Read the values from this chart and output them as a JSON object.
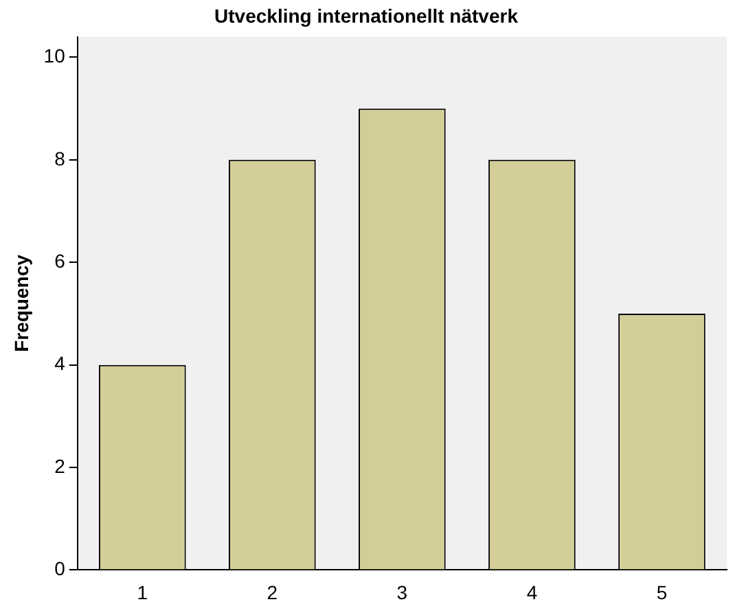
{
  "chart_data": {
    "type": "bar",
    "title": "Utveckling internationellt nätverk",
    "ylabel": "Frequency",
    "categories": [
      "1",
      "2",
      "3",
      "4",
      "5"
    ],
    "values": [
      4,
      8,
      9,
      8,
      5
    ],
    "color": "#d3ce97",
    "ylim": [
      0,
      10.4
    ],
    "yticks": [
      0,
      2,
      4,
      6,
      8,
      10
    ],
    "grid": false,
    "legend": false
  }
}
